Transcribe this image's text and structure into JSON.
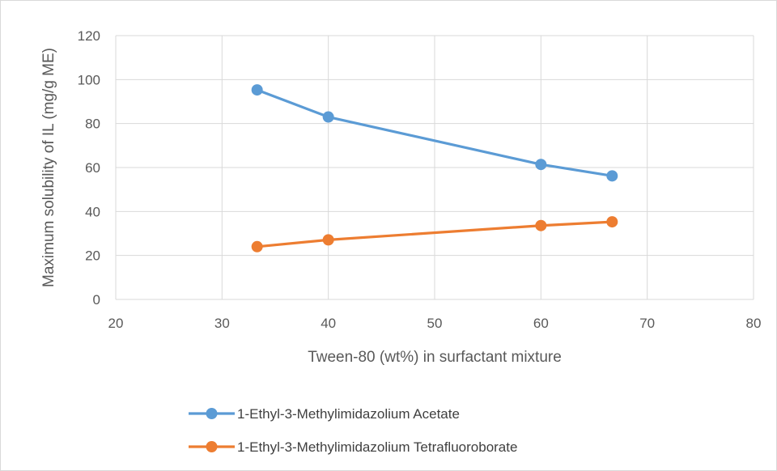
{
  "chart_data": {
    "type": "line",
    "xlabel": "Tween-80 (wt%) in surfactant mixture",
    "ylabel": "Maximum solubility of IL (mg/g ME)",
    "xlim": [
      20,
      80
    ],
    "ylim": [
      0,
      120
    ],
    "x_ticks": [
      20,
      30,
      40,
      50,
      60,
      70,
      80
    ],
    "y_ticks": [
      0,
      20,
      40,
      60,
      80,
      100,
      120
    ],
    "grid": true,
    "legend_position": "bottom",
    "series": [
      {
        "name": "1-Ethyl-3-Methylimidazolium Acetate",
        "color": "#5b9bd5",
        "marker": "circle",
        "points": [
          {
            "x": 33.3,
            "y": 95.3
          },
          {
            "x": 40,
            "y": 83
          },
          {
            "x": 60,
            "y": 61.4
          },
          {
            "x": 66.7,
            "y": 56.2
          }
        ]
      },
      {
        "name": "1-Ethyl-3-Methylimidazolium Tetrafluoroborate",
        "color": "#ed7d31",
        "marker": "circle",
        "points": [
          {
            "x": 33.3,
            "y": 24
          },
          {
            "x": 40,
            "y": 27.1
          },
          {
            "x": 60,
            "y": 33.6
          },
          {
            "x": 66.7,
            "y": 35.3
          }
        ]
      }
    ]
  }
}
